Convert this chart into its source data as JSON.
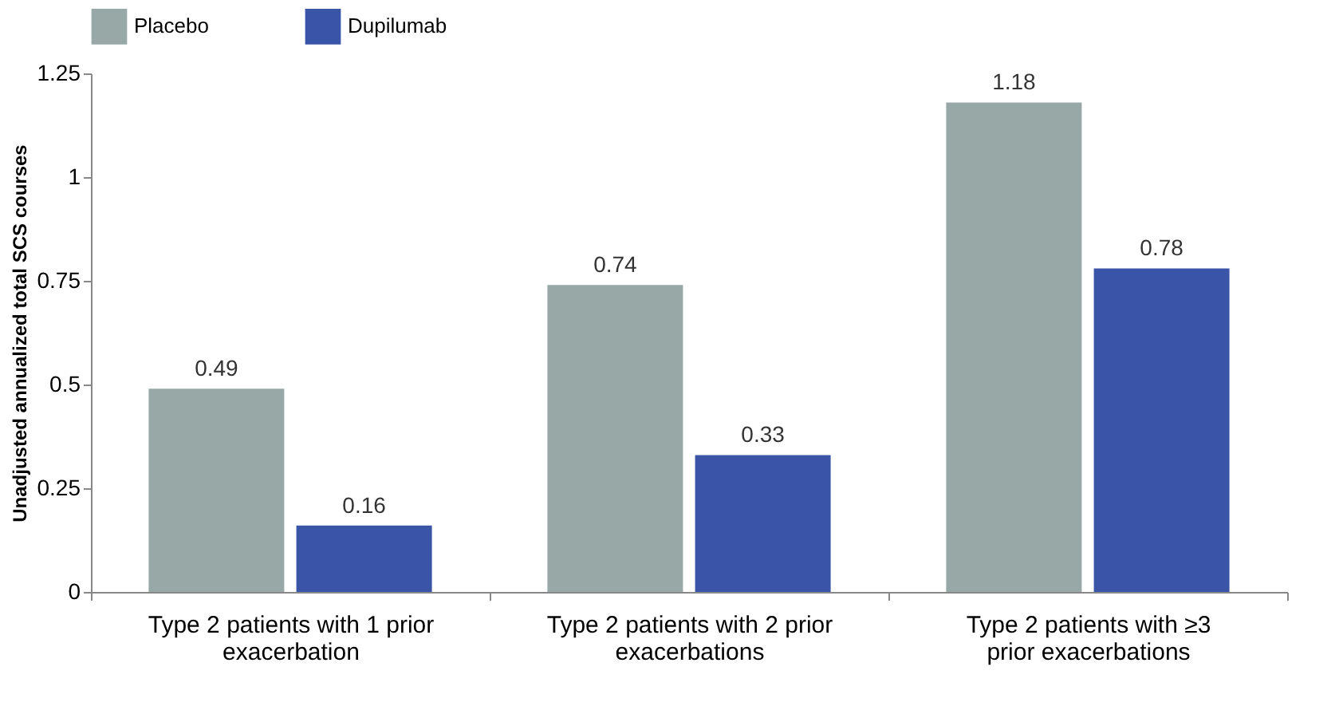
{
  "chart_data": {
    "type": "bar",
    "ylabel": "Unadjusted annualized total SCS courses",
    "categories": [
      "Type 2 patients with 1 prior exacerbation",
      "Type 2 patients with 2 prior exacerbations",
      "Type 2 patients with ≥3 prior exacerbations"
    ],
    "series": [
      {
        "name": "Placebo",
        "color": "#98a8a7",
        "values": [
          0.49,
          0.74,
          1.18
        ]
      },
      {
        "name": "Dupilumab",
        "color": "#3a54a8",
        "values": [
          0.16,
          0.33,
          0.78
        ]
      }
    ],
    "ylim": [
      0,
      1.25
    ],
    "yticks": [
      0,
      0.25,
      0.5,
      0.75,
      1,
      1.25
    ],
    "grid": false,
    "legend": "top",
    "data_labels": true
  }
}
